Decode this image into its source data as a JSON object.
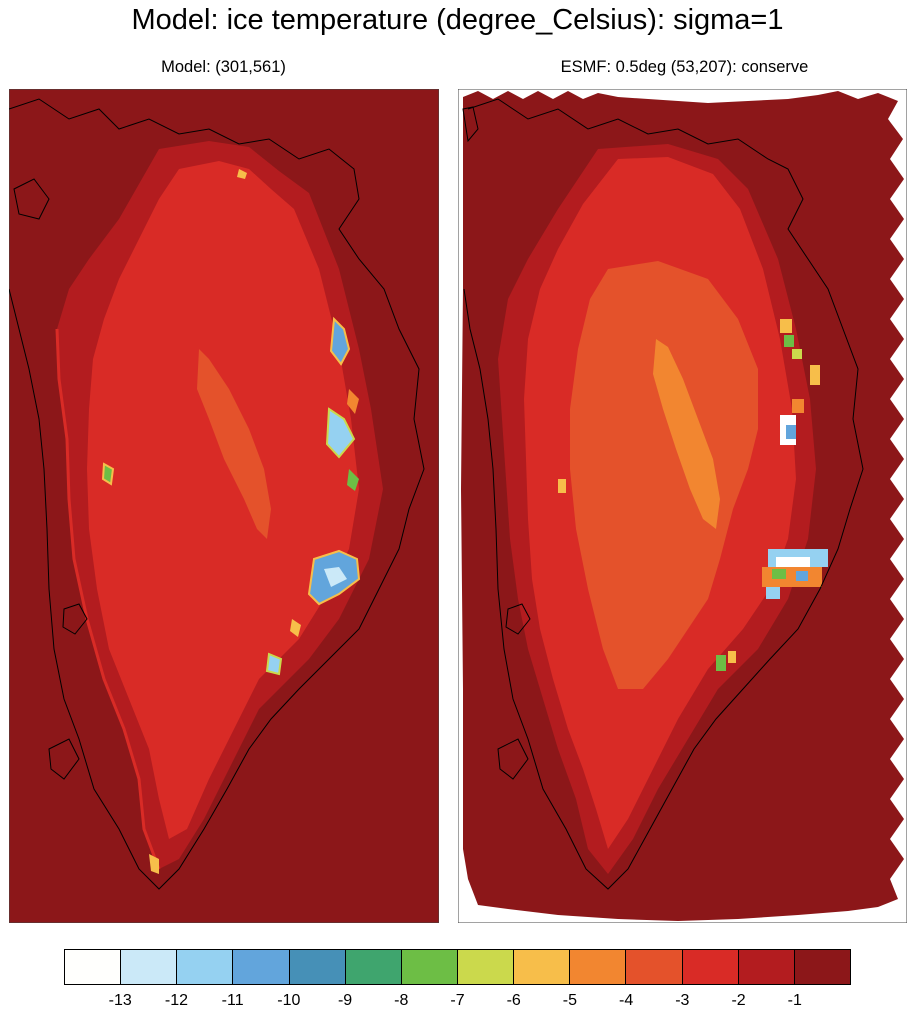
{
  "title": "Model: ice temperature (degree_Celsius): sigma=1",
  "left_subtitle": "Model: (301,561)",
  "right_subtitle": "ESMF: 0.5deg (53,207): conserve",
  "legend": {
    "colors": [
      "#fffffd",
      "#cbe9f8",
      "#95d1f1",
      "#62a5dc",
      "#4690b7",
      "#3fa56e",
      "#6dbe45",
      "#cbd94c",
      "#f7be4a",
      "#f28630",
      "#e4522b",
      "#d92b26",
      "#b31c1f",
      "#8c1719"
    ],
    "labels": [
      "-13",
      "-12",
      "-11",
      "-10",
      "-9",
      "-8",
      "-7",
      "-6",
      "-5",
      "-4",
      "-3",
      "-2",
      "-1"
    ]
  }
}
